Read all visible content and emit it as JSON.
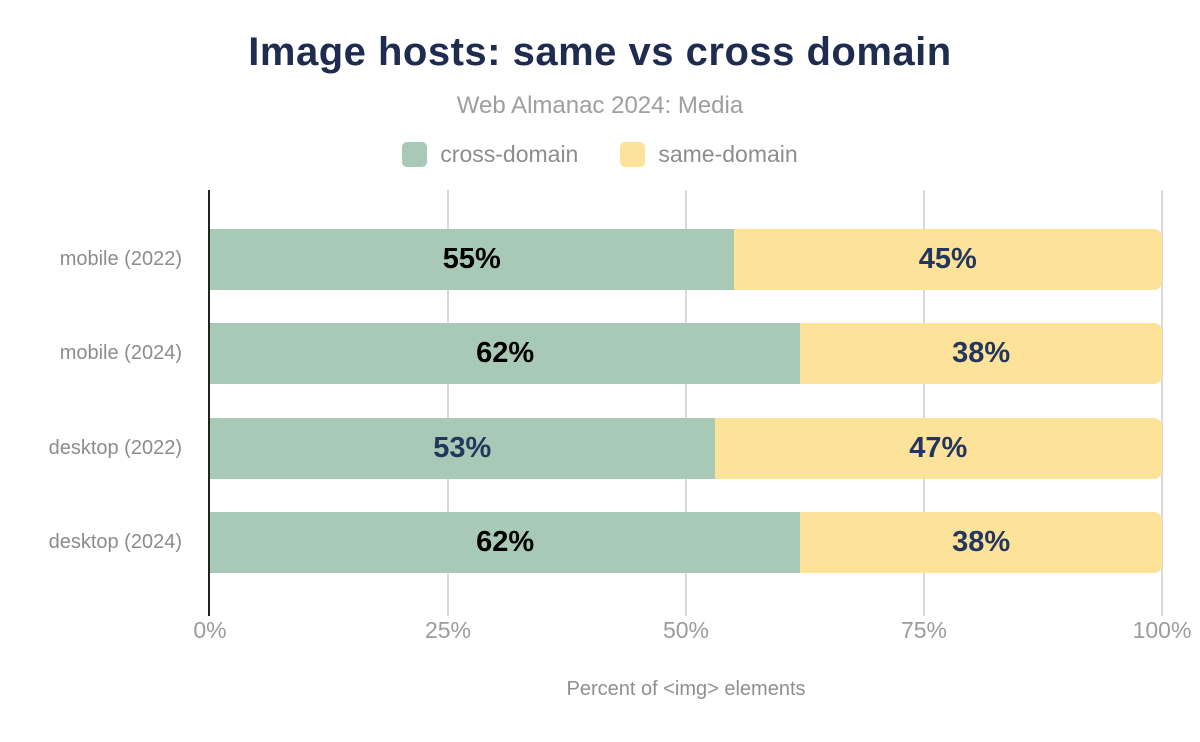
{
  "chart_data": {
    "type": "bar",
    "variant": "horizontal-stacked",
    "title": "Image hosts: same vs cross domain",
    "subtitle": "Web Almanac 2024: Media",
    "xlabel": "Percent of <img> elements",
    "xlim": [
      0,
      100
    ],
    "grid": true,
    "legend_position": "top",
    "categories": [
      "mobile (2022)",
      "mobile (2024)",
      "desktop (2022)",
      "desktop (2024)"
    ],
    "series": [
      {
        "name": "cross-domain",
        "color": "#a8c9b6",
        "values": [
          55,
          62,
          53,
          62
        ],
        "labels": [
          "55%",
          "62%",
          "53%",
          "62%"
        ],
        "label_colors": [
          "#000000",
          "#000000",
          "#25365e",
          "#000000"
        ]
      },
      {
        "name": "same-domain",
        "color": "#fde39a",
        "values": [
          45,
          38,
          47,
          38
        ],
        "labels": [
          "45%",
          "38%",
          "47%",
          "38%"
        ],
        "label_colors": [
          "#25365e",
          "#25365e",
          "#25365e",
          "#25365e"
        ]
      }
    ],
    "x_ticks": [
      {
        "value": 0,
        "label": "0%"
      },
      {
        "value": 25,
        "label": "25%"
      },
      {
        "value": 50,
        "label": "50%"
      },
      {
        "value": 75,
        "label": "75%"
      },
      {
        "value": 100,
        "label": "100%"
      }
    ]
  },
  "colors": {
    "title": "#1e2c50",
    "subtitle_gray": "#9e9e9e",
    "label_gray": "#8c8c8c",
    "gridline": "#d9d9d9",
    "axis_line": "#222222",
    "background": "#ffffff"
  }
}
